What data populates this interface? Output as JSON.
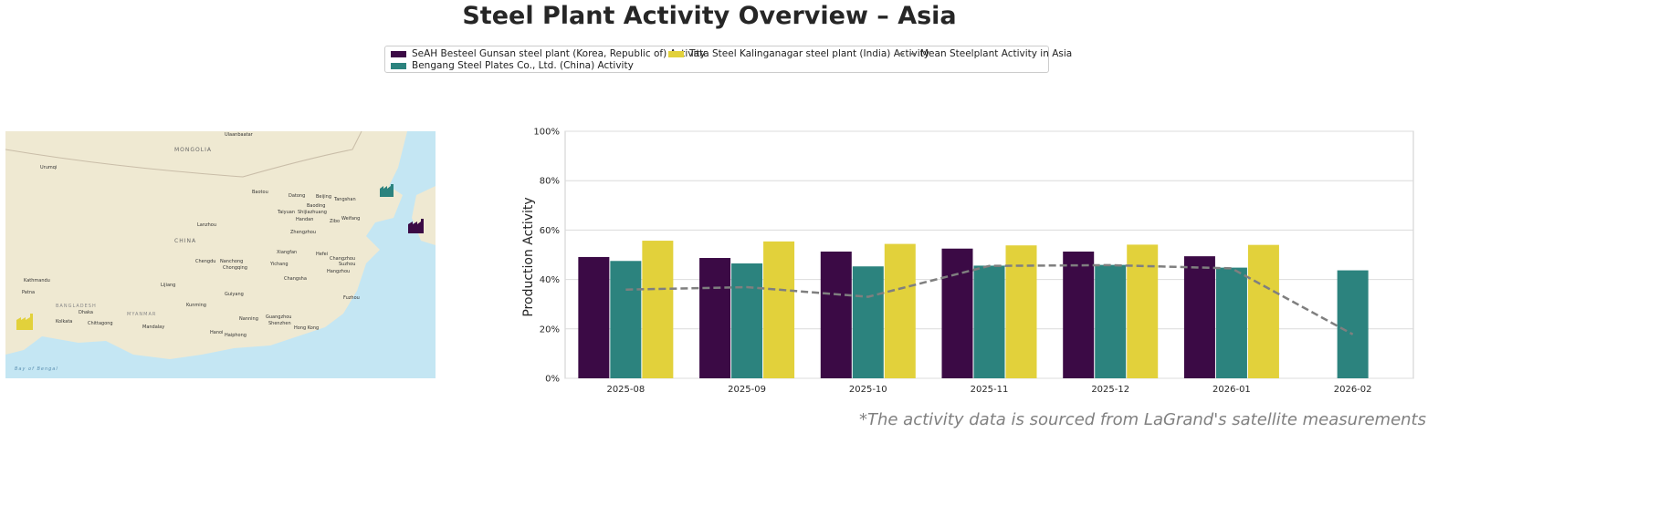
{
  "title": "Steel Plant Activity Overview – Asia",
  "footnote": "*The activity data is sourced from LaGrand's satellite measurements",
  "map": {
    "labels": [
      "MONGOLIA",
      "CHINA",
      "Ulaanbaatar",
      "Urumqi",
      "Baotou",
      "Datong",
      "Beijing",
      "Tangshan",
      "Baoding",
      "Taiyuan",
      "Shijiazhuang",
      "Handan",
      "Zibo",
      "Weifang",
      "Zhengzhou",
      "Lanzhou",
      "Xiangfan",
      "Hefei",
      "Changzhou",
      "Suzhou",
      "Yichang",
      "Chengdu",
      "Nanchong",
      "Chongqing",
      "Hangzhou",
      "Changsha",
      "Lijiang",
      "Guiyang",
      "Kunming",
      "Nanning",
      "Guangzhou",
      "Shenzhen",
      "Hong Kong",
      "Hanoi",
      "Haiphong",
      "Fuzhou",
      "Kathmandu",
      "Patna",
      "Dhaka",
      "Kolkata",
      "Chittagong",
      "Mandalay",
      "BANGLADESH",
      "MYANMAR",
      "Bay of Bengal"
    ],
    "markers": [
      {
        "plant": "Bengang Steel Plates Co., Ltd. (China)",
        "color": "#2c837e",
        "icon": "factory-icon"
      },
      {
        "plant": "SeAH Besteel Gunsan steel plant (Korea, Republic of)",
        "color": "#3b0a45",
        "icon": "factory-icon"
      },
      {
        "plant": "Tata Steel Kalinganagar steel plant (India)",
        "color": "#e2d13b",
        "icon": "factory-icon"
      }
    ]
  },
  "chart_data": {
    "type": "bar",
    "ylabel": "Production Activity",
    "xlabel": "",
    "ylim": [
      0,
      100
    ],
    "yticks": [
      "0%",
      "20%",
      "40%",
      "60%",
      "80%",
      "100%"
    ],
    "grid": true,
    "legend_position": "top-center",
    "categories": [
      "2025-08",
      "2025-09",
      "2025-10",
      "2025-11",
      "2025-12",
      "2026-01",
      "2026-02"
    ],
    "series": [
      {
        "name": "SeAH Besteel Gunsan steel plant (Korea, Republic of) Activity",
        "color": "#3b0a45",
        "values": [
          49.1,
          48.7,
          51.3,
          52.5,
          51.3,
          49.4,
          null
        ]
      },
      {
        "name": "Bengang Steel Plates Co., Ltd. (China) Activity",
        "color": "#2c837e",
        "values": [
          47.5,
          46.5,
          45.3,
          45.6,
          45.9,
          44.8,
          43.7
        ]
      },
      {
        "name": "Tata Steel Kalinganagar steel plant (India) Activity",
        "color": "#e2d13b",
        "values": [
          55.7,
          55.4,
          54.4,
          53.8,
          54.1,
          54.0,
          null
        ]
      }
    ],
    "line": {
      "name": "Mean Steelplant Activity in Asia",
      "color": "#7f7f7f",
      "style": "dashed",
      "values": [
        35.9,
        36.9,
        33.0,
        45.5,
        45.8,
        44.5,
        17.8
      ]
    }
  }
}
